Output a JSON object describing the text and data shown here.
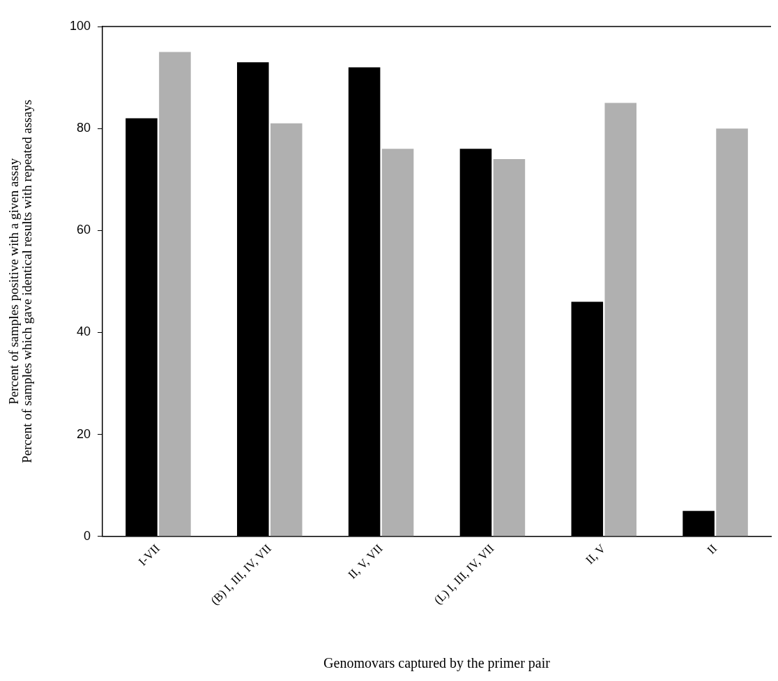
{
  "chart_data": {
    "type": "bar",
    "xlabel": "Genomovars captured by the primer pair",
    "ylabel": "Percent of samples positive with a given assay\nPercent of samples which gave identical results with repeated assays",
    "categories": [
      "I-VII",
      "(B) I, III, IV, VII",
      "II, V, VII",
      "(L) I, III, IV, VII",
      "II, V",
      "II"
    ],
    "series": [
      {
        "color": "#000000",
        "values": [
          82,
          93,
          92,
          76,
          46,
          5
        ]
      },
      {
        "color": "#b0b0b0",
        "values": [
          95,
          81,
          76,
          74,
          85,
          80
        ]
      }
    ],
    "ylim": [
      0,
      100
    ],
    "yticks": [
      0,
      20,
      40,
      60,
      80,
      100
    ],
    "grid": false
  }
}
